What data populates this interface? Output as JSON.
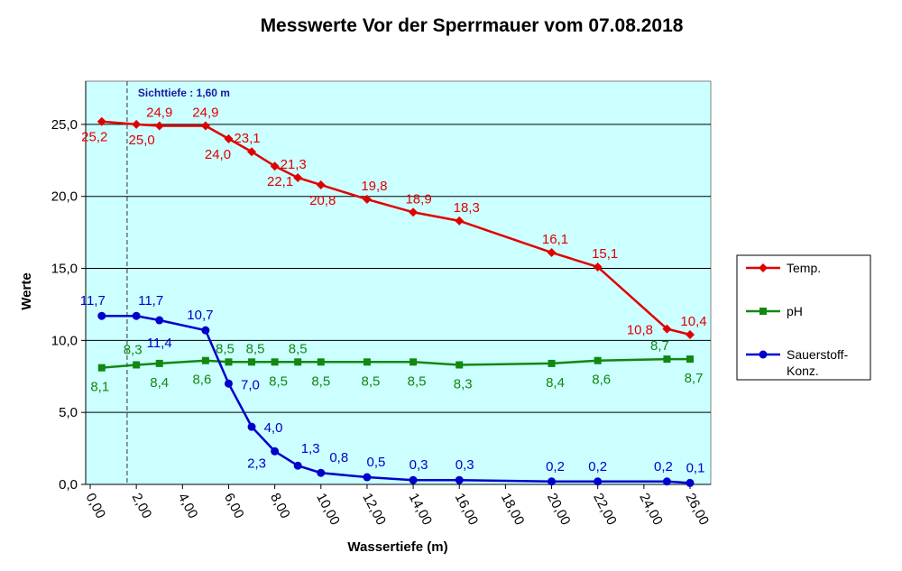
{
  "chart_data": {
    "type": "line",
    "title": "Messwerte Vor der Sperrmauer vom 07.08.2018",
    "xlabel": "Wassertiefe (m)",
    "ylabel": "Werte",
    "xlim": [
      0,
      26
    ],
    "ylim": [
      0,
      28
    ],
    "x_ticks": [
      "0,00",
      "2,00",
      "4,00",
      "6,00",
      "8,00",
      "10,00",
      "12,00",
      "14,00",
      "16,00",
      "18,00",
      "20,00",
      "22,00",
      "24,00",
      "26,00"
    ],
    "y_ticks": [
      "0,0",
      "5,0",
      "10,0",
      "15,0",
      "20,0",
      "25,0"
    ],
    "grid": "horizontal",
    "legend_position": "right",
    "annotation": {
      "text": "Sichttiefe : 1,60 m",
      "x": 1.6
    },
    "series": [
      {
        "name": "Temp.",
        "color": "#e00000",
        "marker": "diamond",
        "x": [
          0.5,
          2,
          3,
          5,
          6,
          7,
          8,
          9,
          10,
          12,
          14,
          16,
          20,
          22,
          25,
          26
        ],
        "values": [
          25.2,
          25.0,
          24.9,
          24.9,
          24.0,
          23.1,
          22.1,
          21.3,
          20.8,
          19.8,
          18.9,
          18.3,
          16.1,
          15.1,
          10.8,
          10.4
        ],
        "labels": [
          "25,2",
          "25,0",
          "24,9",
          "24,9",
          "24,0",
          "23,1",
          "22,1",
          "21,3",
          "20,8",
          "19,8",
          "18,9",
          "18,3",
          "16,1",
          "15,1",
          "10,8",
          "10,4"
        ]
      },
      {
        "name": "pH",
        "color": "#118811",
        "marker": "square",
        "x": [
          0.5,
          2,
          3,
          5,
          6,
          7,
          8,
          9,
          10,
          12,
          14,
          16,
          20,
          22,
          25,
          26
        ],
        "values": [
          8.1,
          8.3,
          8.4,
          8.6,
          8.5,
          8.5,
          8.5,
          8.5,
          8.5,
          8.5,
          8.5,
          8.3,
          8.4,
          8.6,
          8.7,
          8.7
        ],
        "labels": [
          "8,1",
          "8,3",
          "8,4",
          "8,6",
          "8,5",
          "8,5",
          "8,5",
          "8,5",
          "8,5",
          "8,5",
          "8,5",
          "8,3",
          "8,4",
          "8,6",
          "8,7",
          "8,7"
        ]
      },
      {
        "name": "Sauerstoff-Konz.",
        "legend_lines": [
          "Sauerstoff-",
          "Konz."
        ],
        "color": "#0000cc",
        "marker": "circle",
        "x": [
          0.5,
          2,
          3,
          5,
          6,
          7,
          8,
          9,
          10,
          12,
          14,
          16,
          20,
          22,
          25,
          26
        ],
        "values": [
          11.7,
          11.7,
          11.4,
          10.7,
          7.0,
          4.0,
          2.3,
          1.3,
          0.8,
          0.5,
          0.3,
          0.3,
          0.2,
          0.2,
          0.2,
          0.1
        ],
        "labels": [
          "11,7",
          "11,7",
          "11,4",
          "10,7",
          "7,0",
          "4,0",
          "2,3",
          "1,3",
          "0,8",
          "0,5",
          "0,3",
          "0,3",
          "0,2",
          "0,2",
          "0,2",
          "0,1"
        ]
      }
    ],
    "colors": {
      "plot_background": "#ccffff",
      "grid": "#000000"
    }
  }
}
